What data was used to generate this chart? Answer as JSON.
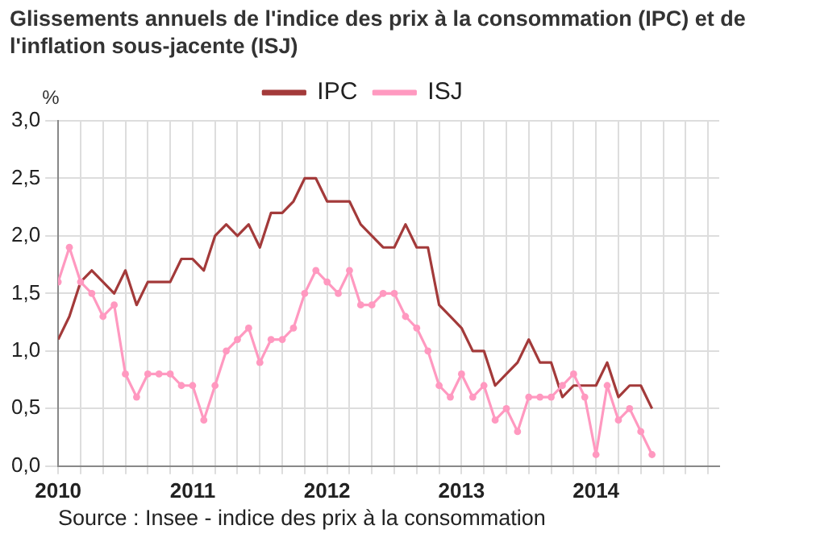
{
  "chart_data": {
    "type": "line",
    "title": "Glissements annuels de l'indice des prix à la consommation (IPC) et de l'inflation sous-jacente (ISJ)",
    "ylabel": "%",
    "annotations": [
      "Source : Insee - indice des prix à la consommation"
    ],
    "x": [
      "2010-01",
      "2010-02",
      "2010-03",
      "2010-04",
      "2010-05",
      "2010-06",
      "2010-07",
      "2010-08",
      "2010-09",
      "2010-10",
      "2010-11",
      "2010-12",
      "2011-01",
      "2011-02",
      "2011-03",
      "2011-04",
      "2011-05",
      "2011-06",
      "2011-07",
      "2011-08",
      "2011-09",
      "2011-10",
      "2011-11",
      "2011-12",
      "2012-01",
      "2012-02",
      "2012-03",
      "2012-04",
      "2012-05",
      "2012-06",
      "2012-07",
      "2012-08",
      "2012-09",
      "2012-10",
      "2012-11",
      "2012-12",
      "2013-01",
      "2013-02",
      "2013-03",
      "2013-04",
      "2013-05",
      "2013-06",
      "2013-07",
      "2013-08",
      "2013-09",
      "2013-10",
      "2013-11",
      "2013-12",
      "2014-01",
      "2014-02",
      "2014-03",
      "2014-04",
      "2014-05",
      "2014-06"
    ],
    "series": [
      {
        "name": "IPC",
        "color": "#a33a3a",
        "marker": "none",
        "values": [
          1.1,
          1.3,
          1.6,
          1.7,
          1.6,
          1.5,
          1.7,
          1.4,
          1.6,
          1.6,
          1.6,
          1.8,
          1.8,
          1.7,
          2.0,
          2.1,
          2.0,
          2.1,
          1.9,
          2.2,
          2.2,
          2.3,
          2.5,
          2.5,
          2.3,
          2.3,
          2.3,
          2.1,
          2.0,
          1.9,
          1.9,
          2.1,
          1.9,
          1.9,
          1.4,
          1.3,
          1.2,
          1.0,
          1.0,
          0.7,
          0.8,
          0.9,
          1.1,
          0.9,
          0.9,
          0.6,
          0.7,
          0.7,
          0.7,
          0.9,
          0.6,
          0.7,
          0.7,
          0.5
        ]
      },
      {
        "name": "ISJ",
        "color": "#ff99c0",
        "marker": "circle",
        "values": [
          1.6,
          1.9,
          1.6,
          1.5,
          1.3,
          1.4,
          0.8,
          0.6,
          0.8,
          0.8,
          0.8,
          0.7,
          0.7,
          0.4,
          0.7,
          1.0,
          1.1,
          1.2,
          0.9,
          1.1,
          1.1,
          1.2,
          1.5,
          1.7,
          1.6,
          1.5,
          1.7,
          1.4,
          1.4,
          1.5,
          1.5,
          1.3,
          1.2,
          1.0,
          0.7,
          0.6,
          0.8,
          0.6,
          0.7,
          0.4,
          0.5,
          0.3,
          0.6,
          0.6,
          0.6,
          0.7,
          0.8,
          0.6,
          0.1,
          0.7,
          0.4,
          0.5,
          0.3,
          0.1
        ]
      }
    ],
    "xlim": [
      "2010-01",
      "2014-12"
    ],
    "xticks": [
      {
        "value": "2010-01",
        "label": "2010"
      },
      {
        "value": "2010-03",
        "label": null
      },
      {
        "value": "2010-05",
        "label": null
      },
      {
        "value": "2010-07",
        "label": null
      },
      {
        "value": "2010-09",
        "label": null
      },
      {
        "value": "2010-11",
        "label": null
      },
      {
        "value": "2011-01",
        "label": "2011"
      },
      {
        "value": "2011-03",
        "label": null
      },
      {
        "value": "2011-05",
        "label": null
      },
      {
        "value": "2011-07",
        "label": null
      },
      {
        "value": "2011-09",
        "label": null
      },
      {
        "value": "2011-11",
        "label": null
      },
      {
        "value": "2012-01",
        "label": "2012"
      },
      {
        "value": "2012-03",
        "label": null
      },
      {
        "value": "2012-05",
        "label": null
      },
      {
        "value": "2012-07",
        "label": null
      },
      {
        "value": "2012-09",
        "label": null
      },
      {
        "value": "2012-11",
        "label": null
      },
      {
        "value": "2013-01",
        "label": "2013"
      },
      {
        "value": "2013-03",
        "label": null
      },
      {
        "value": "2013-05",
        "label": null
      },
      {
        "value": "2013-07",
        "label": null
      },
      {
        "value": "2013-09",
        "label": null
      },
      {
        "value": "2013-11",
        "label": null
      },
      {
        "value": "2014-01",
        "label": "2014"
      },
      {
        "value": "2014-03",
        "label": null
      },
      {
        "value": "2014-05",
        "label": null
      },
      {
        "value": "2014-07",
        "label": null
      },
      {
        "value": "2014-09",
        "label": null
      },
      {
        "value": "2014-11",
        "label": null
      }
    ],
    "ylim": [
      0,
      3
    ],
    "yticks": [
      {
        "value": 0,
        "label": "0,0"
      },
      {
        "value": 0.5,
        "label": "0,5"
      },
      {
        "value": 1,
        "label": "1,0"
      },
      {
        "value": 1.5,
        "label": "1,5"
      },
      {
        "value": 2,
        "label": "2,0"
      },
      {
        "value": 2.5,
        "label": "2,5"
      },
      {
        "value": 3,
        "label": "3,0"
      }
    ],
    "grid": true,
    "legend": "top",
    "line_style": "solid"
  }
}
